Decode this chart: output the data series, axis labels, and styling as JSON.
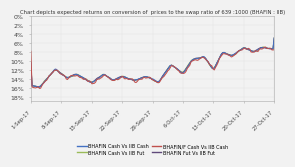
{
  "title": "Chart depicts expected returns on conversion of  prices to the swap ratio of 639 :1000 (BHAFIN : IIB)",
  "x_labels": [
    "1-Sep-17",
    "8-Sep-17",
    "15-Sep-17",
    "22-Sep-17",
    "29-Sep-17",
    "6-Oct-17",
    "13-Oct-17",
    "20-Oct-17",
    "27-Oct-17"
  ],
  "legend": [
    {
      "label": "BHAFIN Cash Vs IIB Cash",
      "color": "#4472C4"
    },
    {
      "label": "BHAFIN/F Cash Vs IIB Cash",
      "color": "#C0504D"
    },
    {
      "label": "BHAFIN Cash Vs IIB Fut",
      "color": "#9BBB59"
    },
    {
      "label": "BHAFIN Fut Vs IIB Fut",
      "color": "#604A7B"
    }
  ],
  "background_color": "#F2F2F2",
  "plot_bg_color": "#F2F2F2",
  "y_min": 0,
  "y_max": 18,
  "y_ticks": [
    0,
    2,
    4,
    6,
    8,
    10,
    12,
    14,
    16,
    18
  ]
}
